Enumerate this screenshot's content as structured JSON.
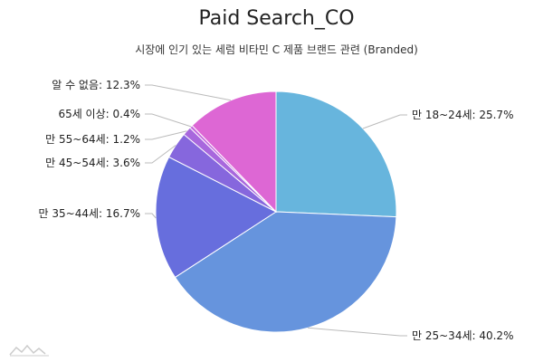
{
  "chart_data": {
    "type": "pie",
    "title": "Paid Search_CO",
    "subtitle": "시장에 인기 있는 세럼 비타민 C 제품 브랜드 관련 (Branded)",
    "slices": [
      {
        "label": "만 18~24세: 25.7%",
        "value": 25.7,
        "color": "#67b5dd"
      },
      {
        "label": "만 25~34세: 40.2%",
        "value": 40.2,
        "color": "#6694dd"
      },
      {
        "label": "만 35~44세: 16.7%",
        "value": 16.7,
        "color": "#676edd"
      },
      {
        "label": "만 45~54세: 3.6%",
        "value": 3.6,
        "color": "#8667dd"
      },
      {
        "label": "만 55~64세: 1.2%",
        "value": 1.2,
        "color": "#a867dd"
      },
      {
        "label": "65세 이상: 0.4%",
        "value": 0.4,
        "color": "#c567dd"
      },
      {
        "label": "알 수 없음: 12.3%",
        "value": 12.3,
        "color": "#dd67d4"
      }
    ]
  }
}
